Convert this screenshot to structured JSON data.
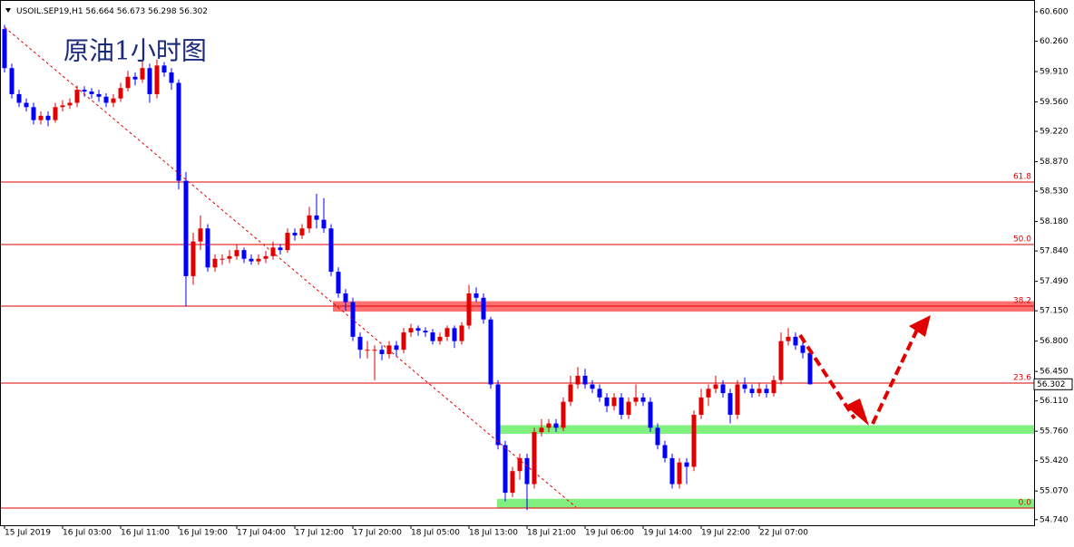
{
  "chart_data": {
    "type": "candlestick",
    "header_symbol": "USOIL.SEP19,H1",
    "title": "原油1小时图",
    "up_color": "#e00000",
    "down_color": "#0000ff",
    "ylim": [
      54.675,
      60.736
    ],
    "yticks": [
      {
        "value": 60.6,
        "label": "60.600"
      },
      {
        "value": 60.26,
        "label": "60.260"
      },
      {
        "value": 59.91,
        "label": "59.910"
      },
      {
        "value": 59.56,
        "label": "59.560"
      },
      {
        "value": 59.22,
        "label": "59.220"
      },
      {
        "value": 58.87,
        "label": "58.870"
      },
      {
        "value": 58.53,
        "label": "58.530"
      },
      {
        "value": 58.18,
        "label": "58.180"
      },
      {
        "value": 57.84,
        "label": "57.840"
      },
      {
        "value": 57.49,
        "label": "57.490"
      },
      {
        "value": 57.15,
        "label": "57.150"
      },
      {
        "value": 56.8,
        "label": "56.800"
      },
      {
        "value": 56.45,
        "label": "56.450"
      },
      {
        "value": 56.11,
        "label": "56.110"
      },
      {
        "value": 55.76,
        "label": "55.760"
      },
      {
        "value": 55.42,
        "label": "55.420"
      },
      {
        "value": 55.07,
        "label": "55.070"
      },
      {
        "value": 54.74,
        "label": "54.740"
      }
    ],
    "categories": [
      "15 Jul 2019",
      null,
      null,
      null,
      null,
      null,
      null,
      null,
      "16 Jul 03:00",
      null,
      null,
      null,
      null,
      null,
      null,
      null,
      "16 Jul 11:00",
      null,
      null,
      null,
      null,
      null,
      null,
      null,
      "16 Jul 19:00",
      null,
      null,
      null,
      null,
      null,
      null,
      null,
      "17 Jul 04:00",
      null,
      null,
      null,
      null,
      null,
      null,
      null,
      "17 Jul 12:00",
      null,
      null,
      null,
      null,
      null,
      null,
      null,
      "17 Jul 20:00",
      null,
      null,
      null,
      null,
      null,
      null,
      null,
      "18 Jul 05:00",
      null,
      null,
      null,
      null,
      null,
      null,
      null,
      "18 Jul 13:00",
      null,
      null,
      null,
      null,
      null,
      null,
      null,
      "18 Jul 21:00",
      null,
      null,
      null,
      null,
      null,
      null,
      null,
      "19 Jul 06:00",
      null,
      null,
      null,
      null,
      null,
      null,
      null,
      "19 Jul 14:00",
      null,
      null,
      null,
      null,
      null,
      null,
      null,
      "19 Jul 22:00",
      null,
      null,
      null,
      null,
      null,
      null,
      null,
      "22 Jul 07:00",
      null,
      null,
      null,
      null,
      null,
      null,
      null
    ],
    "series": [
      {
        "name": "USOIL",
        "values": [
          [
            60.4,
            60.45,
            59.9,
            59.95
          ],
          [
            59.95,
            60.0,
            59.6,
            59.65
          ],
          [
            59.65,
            59.7,
            59.5,
            59.55
          ],
          [
            59.55,
            59.6,
            59.45,
            59.5
          ],
          [
            59.5,
            59.55,
            59.3,
            59.35
          ],
          [
            59.35,
            59.45,
            59.3,
            59.4
          ],
          [
            59.4,
            59.45,
            59.28,
            59.35
          ],
          [
            59.35,
            59.55,
            59.32,
            59.5
          ],
          [
            59.5,
            59.58,
            59.45,
            59.52
          ],
          [
            59.52,
            59.6,
            59.48,
            59.55
          ],
          [
            59.55,
            59.75,
            59.5,
            59.7
          ],
          [
            59.7,
            59.74,
            59.62,
            59.68
          ],
          [
            59.68,
            59.72,
            59.6,
            59.65
          ],
          [
            59.65,
            59.7,
            59.56,
            59.62
          ],
          [
            59.62,
            59.66,
            59.5,
            59.55
          ],
          [
            59.55,
            59.65,
            59.5,
            59.6
          ],
          [
            59.6,
            59.78,
            59.56,
            59.72
          ],
          [
            59.72,
            59.92,
            59.68,
            59.85
          ],
          [
            59.85,
            59.9,
            59.75,
            59.82
          ],
          [
            59.82,
            60.05,
            59.78,
            59.95
          ],
          [
            59.95,
            60.0,
            59.55,
            59.65
          ],
          [
            59.65,
            60.05,
            59.6,
            59.98
          ],
          [
            59.98,
            60.02,
            59.85,
            59.9
          ],
          [
            59.9,
            59.95,
            59.7,
            59.78
          ],
          [
            59.78,
            59.82,
            58.55,
            58.65
          ],
          [
            58.65,
            58.75,
            57.2,
            57.55
          ],
          [
            57.55,
            58.05,
            57.45,
            57.95
          ],
          [
            57.95,
            58.25,
            57.85,
            58.1
          ],
          [
            58.1,
            58.15,
            57.6,
            57.65
          ],
          [
            57.65,
            57.8,
            57.6,
            57.75
          ],
          [
            57.75,
            57.8,
            57.68,
            57.75
          ],
          [
            57.75,
            57.85,
            57.7,
            57.78
          ],
          [
            57.78,
            57.92,
            57.74,
            57.85
          ],
          [
            57.85,
            57.88,
            57.7,
            57.75
          ],
          [
            57.75,
            57.8,
            57.68,
            57.72
          ],
          [
            57.72,
            57.8,
            57.68,
            57.75
          ],
          [
            57.75,
            57.84,
            57.7,
            57.78
          ],
          [
            57.78,
            57.95,
            57.74,
            57.88
          ],
          [
            57.88,
            57.92,
            57.8,
            57.85
          ],
          [
            57.85,
            58.1,
            57.82,
            58.05
          ],
          [
            58.05,
            58.1,
            57.96,
            58.02
          ],
          [
            58.02,
            58.15,
            57.98,
            58.1
          ],
          [
            58.1,
            58.35,
            58.05,
            58.25
          ],
          [
            58.25,
            58.5,
            58.1,
            58.2
          ],
          [
            58.2,
            58.45,
            58.05,
            58.1
          ],
          [
            58.1,
            58.15,
            57.55,
            57.6
          ],
          [
            57.6,
            57.65,
            57.3,
            57.35
          ],
          [
            57.35,
            57.4,
            57.15,
            57.25
          ],
          [
            57.25,
            57.3,
            56.8,
            56.85
          ],
          [
            56.85,
            56.9,
            56.6,
            56.7
          ],
          [
            56.7,
            56.8,
            56.6,
            56.7
          ],
          [
            56.7,
            56.75,
            56.35,
            56.7
          ],
          [
            56.7,
            56.75,
            56.58,
            56.65
          ],
          [
            56.65,
            56.8,
            56.6,
            56.75
          ],
          [
            56.75,
            56.8,
            56.62,
            56.7
          ],
          [
            56.7,
            56.95,
            56.66,
            56.9
          ],
          [
            56.9,
            57.0,
            56.85,
            56.95
          ],
          [
            56.95,
            56.98,
            56.86,
            56.92
          ],
          [
            56.92,
            56.96,
            56.85,
            56.9
          ],
          [
            56.9,
            56.94,
            56.76,
            56.8
          ],
          [
            56.8,
            56.9,
            56.76,
            56.85
          ],
          [
            56.85,
            56.98,
            56.8,
            56.95
          ],
          [
            56.95,
            56.98,
            56.72,
            56.8
          ],
          [
            56.8,
            57.02,
            56.76,
            56.98
          ],
          [
            56.98,
            57.45,
            56.94,
            57.35
          ],
          [
            57.35,
            57.42,
            57.25,
            57.3
          ],
          [
            57.3,
            57.35,
            57.0,
            57.05
          ],
          [
            57.05,
            57.08,
            56.25,
            56.3
          ],
          [
            56.3,
            56.35,
            55.55,
            55.6
          ],
          [
            55.6,
            55.65,
            54.95,
            55.05
          ],
          [
            55.05,
            55.35,
            55.0,
            55.3
          ],
          [
            55.3,
            55.5,
            55.2,
            55.45
          ],
          [
            55.45,
            55.5,
            54.85,
            55.15
          ],
          [
            55.15,
            55.8,
            55.1,
            55.75
          ],
          [
            55.75,
            55.9,
            55.7,
            55.8
          ],
          [
            55.8,
            55.9,
            55.75,
            55.85
          ],
          [
            55.85,
            55.9,
            55.75,
            55.8
          ],
          [
            55.8,
            56.15,
            55.76,
            56.1
          ],
          [
            56.1,
            56.4,
            56.05,
            56.3
          ],
          [
            56.3,
            56.5,
            56.25,
            56.4
          ],
          [
            56.4,
            56.48,
            56.25,
            56.3
          ],
          [
            56.3,
            56.35,
            56.2,
            56.25
          ],
          [
            56.25,
            56.3,
            56.1,
            56.15
          ],
          [
            56.15,
            56.2,
            55.98,
            56.05
          ],
          [
            56.05,
            56.2,
            56.0,
            56.15
          ],
          [
            56.15,
            56.2,
            55.9,
            55.95
          ],
          [
            55.95,
            56.15,
            55.9,
            56.1
          ],
          [
            56.1,
            56.3,
            56.05,
            56.15
          ],
          [
            56.15,
            56.2,
            56.05,
            56.1
          ],
          [
            56.1,
            56.15,
            55.75,
            55.8
          ],
          [
            55.8,
            55.85,
            55.55,
            55.6
          ],
          [
            55.6,
            55.65,
            55.4,
            55.45
          ],
          [
            55.45,
            55.5,
            55.1,
            55.15
          ],
          [
            55.15,
            55.45,
            55.1,
            55.4
          ],
          [
            55.4,
            55.45,
            55.15,
            55.35
          ],
          [
            55.35,
            56.0,
            55.3,
            55.95
          ],
          [
            55.95,
            56.25,
            55.9,
            56.15
          ],
          [
            56.15,
            56.3,
            56.05,
            56.25
          ],
          [
            56.25,
            56.4,
            56.2,
            56.3
          ],
          [
            56.3,
            56.35,
            56.15,
            56.2
          ],
          [
            56.2,
            56.25,
            55.85,
            55.95
          ],
          [
            55.95,
            56.35,
            55.9,
            56.3
          ],
          [
            56.3,
            56.38,
            56.2,
            56.25
          ],
          [
            56.25,
            56.3,
            56.15,
            56.2
          ],
          [
            56.2,
            56.32,
            56.16,
            56.25
          ],
          [
            56.25,
            56.3,
            56.15,
            56.2
          ],
          [
            56.2,
            56.4,
            56.16,
            56.35
          ],
          [
            56.35,
            56.9,
            56.3,
            56.8
          ],
          [
            56.8,
            56.95,
            56.75,
            56.85
          ],
          [
            56.85,
            56.9,
            56.7,
            56.75
          ],
          [
            56.75,
            56.8,
            56.6,
            56.664
          ],
          [
            56.664,
            56.673,
            56.298,
            56.302
          ]
        ]
      }
    ],
    "fib_levels": [
      {
        "label": "61.8",
        "price": 58.635
      },
      {
        "label": "50.0",
        "price": 57.914
      },
      {
        "label": "38.2",
        "price": 57.204
      },
      {
        "label": "23.6",
        "price": 56.316
      },
      {
        "label": "0.0",
        "price": 54.873
      }
    ],
    "zones": [
      {
        "color": "#ff7070",
        "low": 57.14,
        "high": 57.26
      },
      {
        "color": "#80f080",
        "low": 55.73,
        "high": 55.83
      },
      {
        "color": "#80f080",
        "low": 54.87,
        "high": 54.98
      }
    ]
  }
}
